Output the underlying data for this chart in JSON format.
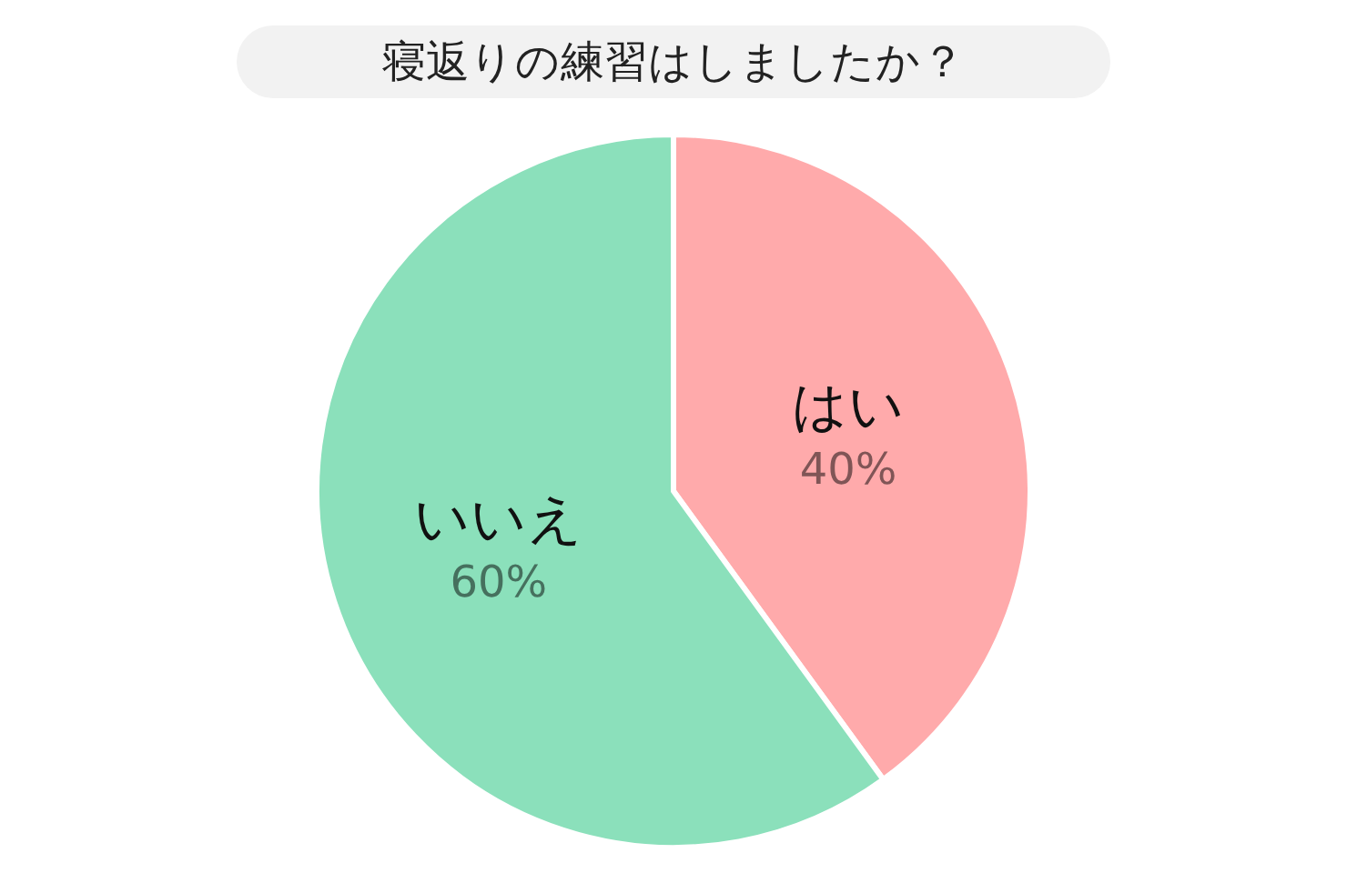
{
  "chart_data": {
    "type": "pie",
    "title": "寝返りの練習はしましたか？",
    "categories": [
      "はい",
      "いいえ"
    ],
    "values": [
      40,
      60
    ],
    "value_labels": [
      "40%",
      "60%"
    ],
    "colors": [
      "#ffaaab",
      "#8be0bb"
    ],
    "legend": false
  }
}
